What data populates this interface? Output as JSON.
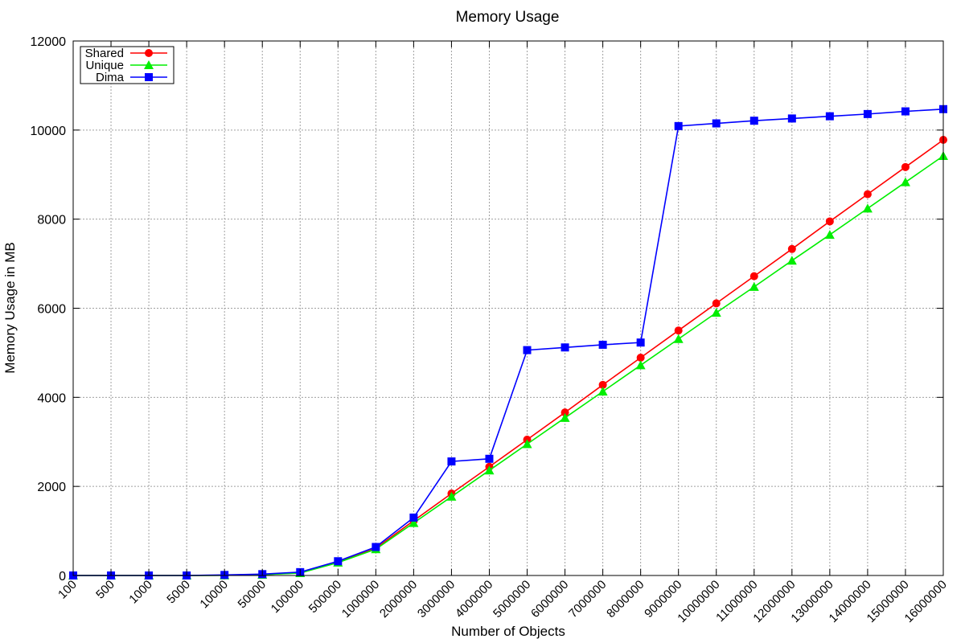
{
  "chart_data": {
    "type": "line",
    "title": "Memory Usage",
    "xlabel": "Number of Objects",
    "ylabel": "Memory Usage in MB",
    "categories": [
      "100",
      "500",
      "1000",
      "5000",
      "10000",
      "50000",
      "100000",
      "500000",
      "1000000",
      "2000000",
      "3000000",
      "4000000",
      "5000000",
      "6000000",
      "7000000",
      "8000000",
      "9000000",
      "10000000",
      "11000000",
      "12000000",
      "13000000",
      "14000000",
      "15000000",
      "16000000"
    ],
    "ylim": [
      0,
      12000
    ],
    "yticks": [
      0,
      2000,
      4000,
      6000,
      8000,
      10000,
      12000
    ],
    "grid": true,
    "legend_position": "top-left",
    "series": [
      {
        "name": "Shared",
        "color": "#ff0000",
        "marker": "circle",
        "values": [
          0,
          0,
          0,
          0,
          5,
          20,
          60,
          300,
          610,
          1230,
          1840,
          2440,
          3050,
          3660,
          4280,
          4890,
          5500,
          6110,
          6720,
          7330,
          7950,
          8560,
          9170,
          9780
        ]
      },
      {
        "name": "Unique",
        "color": "#00ee00",
        "marker": "triangle",
        "values": [
          0,
          0,
          0,
          0,
          4,
          18,
          55,
          290,
          590,
          1180,
          1770,
          2360,
          2950,
          3540,
          4130,
          4720,
          5310,
          5900,
          6480,
          7070,
          7650,
          8240,
          8830,
          9420
        ]
      },
      {
        "name": "Dima",
        "color": "#0000ff",
        "marker": "square",
        "values": [
          0,
          0,
          0,
          0,
          12,
          30,
          75,
          320,
          640,
          1300,
          2560,
          2620,
          5060,
          5120,
          5180,
          5230,
          10090,
          10150,
          10210,
          10260,
          10310,
          10360,
          10420,
          10470
        ]
      }
    ]
  }
}
